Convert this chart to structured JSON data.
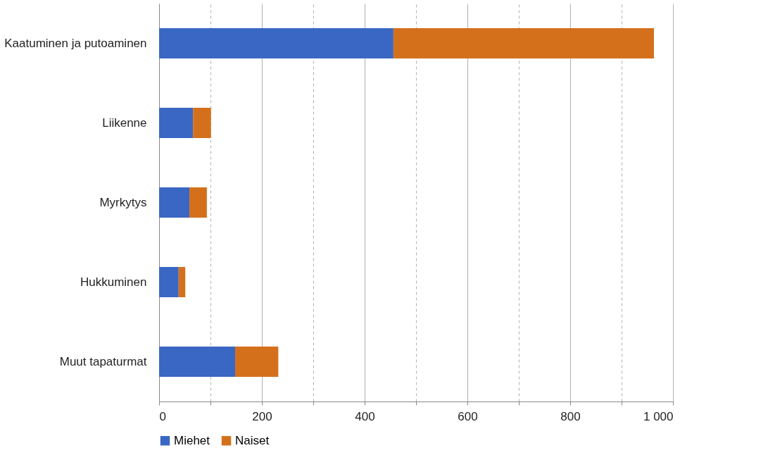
{
  "chart_data": {
    "type": "bar",
    "orientation": "horizontal",
    "stacked": true,
    "categories": [
      "Kaatuminen ja putoaminen",
      "Liikenne",
      "Myrkytys",
      "Hukkuminen",
      "Muut tapaturmat"
    ],
    "series": [
      {
        "name": "Miehet",
        "color": "#3a67c4",
        "values": [
          456,
          66,
          59,
          38,
          148
        ]
      },
      {
        "name": "Naiset",
        "color": "#d4701c",
        "values": [
          507,
          35,
          34,
          13,
          84
        ]
      }
    ],
    "xlim": [
      0,
      1000
    ],
    "xticks": [
      0,
      {
        "value": 100,
        "label": null
      },
      200,
      {
        "value": 300,
        "label": null
      },
      400,
      {
        "value": 500,
        "label": null
      },
      600,
      {
        "value": 700,
        "label": null
      },
      800,
      {
        "value": 900,
        "label": null
      },
      {
        "value": 1000,
        "label": "1 000"
      }
    ],
    "grid": "x",
    "legend": "bottom"
  }
}
